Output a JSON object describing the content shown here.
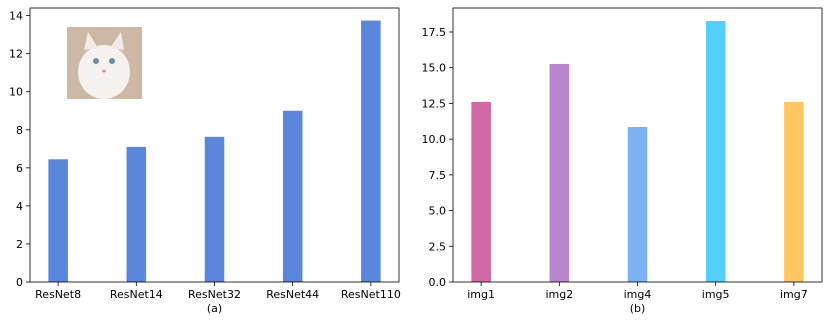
{
  "chart_data": [
    {
      "type": "bar",
      "xlabel": "(a)",
      "categories": [
        "ResNet8",
        "ResNet14",
        "ResNet32",
        "ResNet44",
        "ResNet110"
      ],
      "values": [
        6.45,
        7.1,
        7.63,
        9.0,
        13.74
      ],
      "colors": [
        "#5a87dc",
        "#5a87dc",
        "#5a87dc",
        "#5a87dc",
        "#5a87dc"
      ],
      "ylim": [
        0,
        14.4
      ],
      "yticks": [
        0,
        2,
        4,
        6,
        8,
        10,
        12,
        14
      ]
    },
    {
      "type": "bar",
      "xlabel": "(b)",
      "categories": [
        "img1",
        "img2",
        "img4",
        "img5",
        "img7"
      ],
      "values": [
        12.6,
        15.26,
        10.85,
        18.27,
        12.6
      ],
      "colors": [
        "#d16aa4",
        "#bb84cf",
        "#7ab3f3",
        "#52cffa",
        "#fdc65f"
      ],
      "ylim": [
        0,
        19.18
      ],
      "yticks": [
        {
          "value": 0,
          "label": "0.0"
        },
        {
          "value": 2.5,
          "label": "2.5"
        },
        {
          "value": 5,
          "label": "5.0"
        },
        {
          "value": 7.5,
          "label": "7.5"
        },
        {
          "value": 10,
          "label": "10.0"
        },
        {
          "value": 12.5,
          "label": "12.5"
        },
        {
          "value": 15,
          "label": "15.0"
        },
        {
          "value": 17.5,
          "label": "17.5"
        }
      ]
    }
  ]
}
